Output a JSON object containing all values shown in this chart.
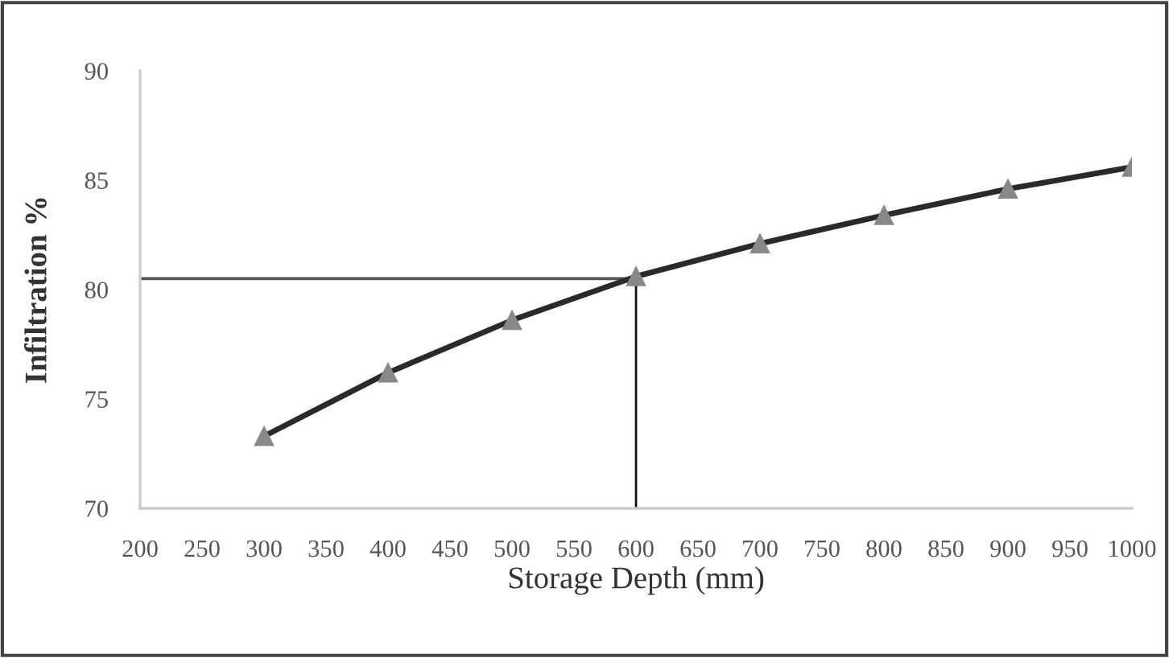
{
  "chart_data": {
    "type": "line",
    "xlabel": "Storage Depth (mm)",
    "ylabel": "Infiltration %",
    "x": [
      300,
      400,
      500,
      600,
      700,
      800,
      900,
      1000
    ],
    "series": [
      {
        "color": "#2a2a2a",
        "values": [
          73.3,
          76.2,
          78.6,
          80.6,
          82.1,
          83.4,
          84.6,
          85.6
        ]
      }
    ],
    "xlim": [
      200,
      1000
    ],
    "xticks": [
      200,
      250,
      300,
      350,
      400,
      450,
      500,
      550,
      600,
      650,
      700,
      750,
      800,
      850,
      900,
      950,
      1000
    ],
    "ylim": [
      70,
      90
    ],
    "yticks": [
      70,
      75,
      80,
      85,
      90
    ],
    "ref_lines": [
      {
        "axis": "y",
        "value": 80.5,
        "color": "#555555"
      },
      {
        "axis": "x",
        "value": 600,
        "color": "#111111"
      }
    ],
    "marker": "triangle",
    "grid": false
  }
}
